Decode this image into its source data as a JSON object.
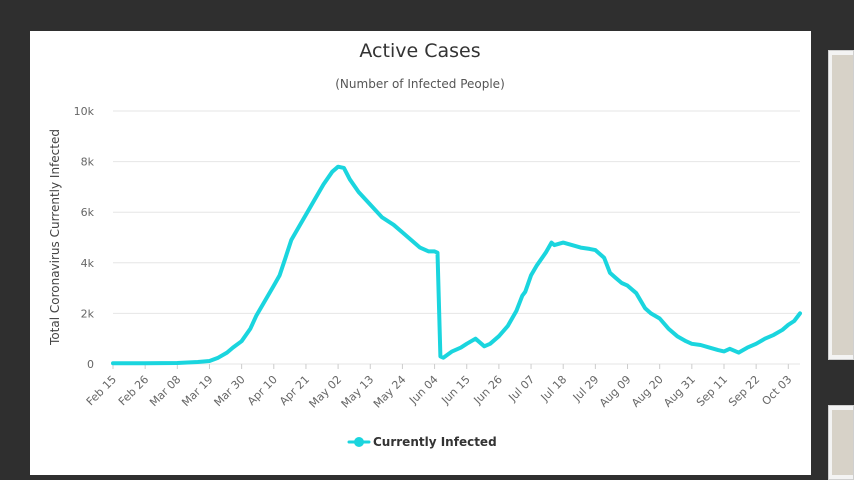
{
  "colors": {
    "series": "#1ad5de",
    "grid": "#e6e6e6",
    "background": "#ffffff",
    "page": "#2f2f2f"
  },
  "chart_data": {
    "type": "line",
    "title": "Active Cases",
    "subtitle": "(Number of Infected People)",
    "ylabel": "Total Coronavirus Currently Infected",
    "xlabel": "",
    "ylim": [
      0,
      10000
    ],
    "y_ticks": [
      {
        "value": 0,
        "label": "0"
      },
      {
        "value": 2000,
        "label": "2k"
      },
      {
        "value": 4000,
        "label": "4k"
      },
      {
        "value": 6000,
        "label": "6k"
      },
      {
        "value": 8000,
        "label": "8k"
      },
      {
        "value": 10000,
        "label": "10k"
      }
    ],
    "x_ticks": [
      "Feb 15",
      "Feb 26",
      "Mar 08",
      "Mar 19",
      "Mar 30",
      "Apr 10",
      "Apr 21",
      "May 02",
      "May 13",
      "May 24",
      "Jun 04",
      "Jun 15",
      "Jun 26",
      "Jul 07",
      "Jul 18",
      "Jul 29",
      "Aug 09",
      "Aug 20",
      "Aug 31",
      "Sep 11",
      "Sep 22",
      "Oct 03"
    ],
    "grid": true,
    "legend": "bottom-center",
    "series": [
      {
        "name": "Currently Infected",
        "x": [
          "Feb 15",
          "Feb 26",
          "Mar 08",
          "Mar 15",
          "Mar 19",
          "Mar 22",
          "Mar 25",
          "Mar 27",
          "Mar 30",
          "Apr 02",
          "Apr 04",
          "Apr 07",
          "Apr 10",
          "Apr 12",
          "Apr 14",
          "Apr 16",
          "Apr 19",
          "Apr 21",
          "Apr 24",
          "Apr 27",
          "Apr 30",
          "May 02",
          "May 04",
          "May 06",
          "May 09",
          "May 13",
          "May 17",
          "May 21",
          "May 24",
          "May 27",
          "May 30",
          "Jun 02",
          "Jun 04",
          "Jun 05",
          "Jun 06",
          "Jun 07",
          "Jun 10",
          "Jun 13",
          "Jun 15",
          "Jun 18",
          "Jun 21",
          "Jun 23",
          "Jun 26",
          "Jun 29",
          "Jul 02",
          "Jul 04",
          "Jul 05",
          "Jul 07",
          "Jul 09",
          "Jul 12",
          "Jul 14",
          "Jul 15",
          "Jul 18",
          "Jul 21",
          "Jul 24",
          "Jul 27",
          "Jul 29",
          "Aug 01",
          "Aug 03",
          "Aug 05",
          "Aug 07",
          "Aug 09",
          "Aug 12",
          "Aug 15",
          "Aug 17",
          "Aug 20",
          "Aug 23",
          "Aug 26",
          "Aug 29",
          "Aug 31",
          "Sep 03",
          "Sep 06",
          "Sep 09",
          "Sep 11",
          "Sep 13",
          "Sep 16",
          "Sep 19",
          "Sep 22",
          "Sep 25",
          "Sep 28",
          "Oct 01",
          "Oct 03",
          "Oct 05",
          "Oct 07"
        ],
        "values": [
          30,
          30,
          40,
          80,
          120,
          250,
          450,
          650,
          900,
          1400,
          1900,
          2500,
          3100,
          3500,
          4200,
          4900,
          5500,
          5900,
          6500,
          7100,
          7600,
          7800,
          7750,
          7300,
          6800,
          6300,
          5800,
          5500,
          5200,
          4900,
          4600,
          4450,
          4450,
          4400,
          300,
          250,
          500,
          650,
          800,
          1000,
          700,
          800,
          1100,
          1500,
          2100,
          2700,
          2850,
          3500,
          3900,
          4400,
          4800,
          4700,
          4800,
          4700,
          4600,
          4550,
          4500,
          4200,
          3600,
          3400,
          3200,
          3100,
          2800,
          2200,
          2000,
          1800,
          1400,
          1100,
          900,
          800,
          750,
          650,
          550,
          500,
          600,
          450,
          650,
          800,
          1000,
          1150,
          1350,
          1550,
          1700,
          2000
        ]
      }
    ]
  }
}
